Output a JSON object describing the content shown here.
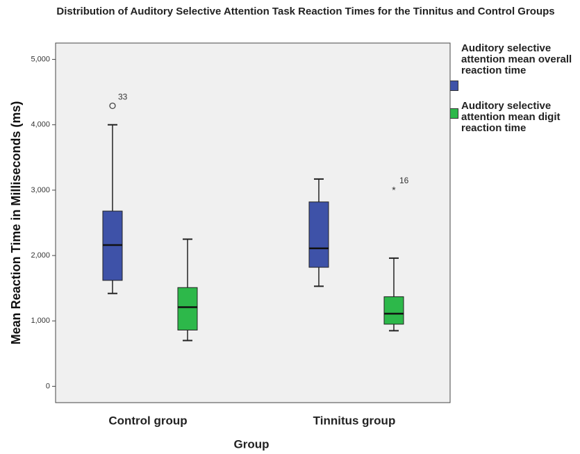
{
  "chart_data": {
    "type": "box",
    "title": "Distribution of Auditory Selective Attention Task Reaction Times for the Tinnitus and Control Groups",
    "x_label": "Group",
    "y_label": "Mean Reaction Time in Milliseconds (ms)",
    "categories": [
      "Control group",
      "Tinnitus group"
    ],
    "ylim": [
      -250,
      5250
    ],
    "yticks": [
      0,
      {
        "value": 1000,
        "label": "1,000"
      },
      {
        "value": 2000,
        "label": "2,000"
      },
      {
        "value": 3000,
        "label": "3,000"
      },
      {
        "value": 4000,
        "label": "4,000"
      },
      {
        "value": 5000,
        "label": "5,000"
      }
    ],
    "series": [
      {
        "name": "Auditory selective attention mean overall reaction time",
        "color": "#3e52a8",
        "boxes": [
          {
            "min": 1420,
            "q1": 1620,
            "median": 2160,
            "q3": 2680,
            "max": 4000,
            "outliers": [
              {
                "value": 4290,
                "label": "33",
                "marker": "circle"
              }
            ]
          },
          {
            "min": 1530,
            "q1": 1820,
            "median": 2110,
            "q3": 2820,
            "max": 3170,
            "outliers": []
          }
        ]
      },
      {
        "name": "Auditory selective attention mean digit reaction time",
        "color": "#2db84a",
        "boxes": [
          {
            "min": 700,
            "q1": 860,
            "median": 1210,
            "q3": 1510,
            "max": 2250,
            "outliers": []
          },
          {
            "min": 850,
            "q1": 950,
            "median": 1110,
            "q3": 1370,
            "max": 1960,
            "outliers": [
              {
                "value": 3010,
                "label": "16",
                "marker": "star"
              }
            ]
          }
        ]
      }
    ]
  }
}
